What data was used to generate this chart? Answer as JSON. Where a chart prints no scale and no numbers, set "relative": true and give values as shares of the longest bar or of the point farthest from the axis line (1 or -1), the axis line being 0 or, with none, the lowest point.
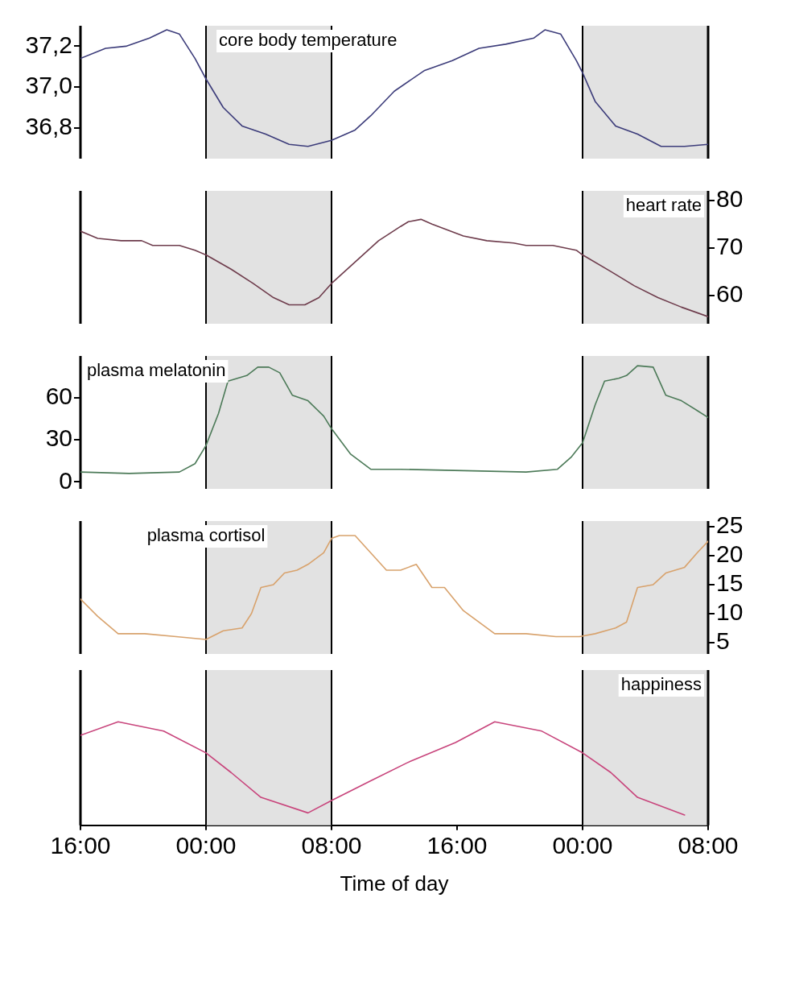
{
  "chart_data": [
    {
      "type": "line",
      "marker": "none",
      "tick_labels": "y",
      "xlim": [
        "--01-01T16:00",
        "--01-03T08:00"
      ],
      "ylim": [
        36.65,
        37.3
      ],
      "yticks": [
        {
          "value": 36.8,
          "label": "36,8"
        },
        {
          "value": 37.0,
          "label": "37,0"
        },
        {
          "value": 37.2,
          "label": "37,2"
        }
      ],
      "bands": [
        {
          "axis": "x",
          "from": "--01-02T00:00",
          "to": "--01-02T08:00",
          "color": "#e2e2e2"
        },
        {
          "axis": "x",
          "from": "--01-03T00:00",
          "to": "--01-03T08:00",
          "color": "#e2e2e2"
        }
      ],
      "ref_lines": [
        {
          "axis": "x",
          "value": "--01-02T00:00",
          "color": "#000000"
        },
        {
          "axis": "x",
          "value": "--01-02T08:00",
          "color": "#000000"
        },
        {
          "axis": "x",
          "value": "--01-03T00:00",
          "color": "#000000"
        }
      ],
      "series": [
        {
          "name": "core body temperature",
          "color": "#3c3c7a",
          "x": [
            "--01-01T16:00",
            "--01-01T17:36",
            "--01-01T18:54",
            "--01-01T20:24",
            "--01-01T21:30",
            "--01-01T22:18",
            "--01-01T23:18",
            "--01-02T00:00",
            "--01-02T01:06",
            "--01-02T02:18",
            "--01-02T03:48",
            "--01-02T05:18",
            "--01-02T06:30",
            "--01-02T08:00",
            "--01-02T09:30",
            "--01-02T10:30",
            "--01-02T12:00",
            "--01-02T13:54",
            "--01-02T15:42",
            "--01-02T17:24",
            "--01-02T19:06",
            "--01-02T20:54",
            "--01-02T21:36",
            "--01-02T22:36",
            "--01-02T23:36",
            "--01-03T00:00",
            "--01-03T00:48",
            "--01-03T02:06",
            "--01-03T03:30",
            "--01-03T05:00",
            "--01-03T06:30",
            "--01-03T08:00"
          ],
          "values": [
            37.14,
            37.19,
            37.2,
            37.24,
            37.28,
            37.26,
            37.14,
            37.04,
            36.9,
            36.81,
            36.77,
            36.72,
            36.71,
            36.74,
            36.79,
            36.86,
            36.98,
            37.08,
            37.13,
            37.19,
            37.21,
            37.24,
            37.28,
            37.26,
            37.13,
            37.07,
            36.93,
            36.81,
            36.77,
            36.71,
            36.71,
            36.72
          ]
        }
      ]
    },
    {
      "type": "line",
      "marker": "none",
      "tick_labels": "y",
      "xlim": [
        "--01-01T16:00",
        "--01-03T08:00"
      ],
      "ylim": [
        54,
        82
      ],
      "yticks": [
        60,
        70,
        80
      ],
      "bands": [
        {
          "axis": "x",
          "from": "--01-02T00:00",
          "to": "--01-02T08:00",
          "color": "#e2e2e2"
        },
        {
          "axis": "x",
          "from": "--01-03T00:00",
          "to": "--01-03T08:00",
          "color": "#e2e2e2"
        }
      ],
      "ref_lines": [
        {
          "axis": "x",
          "value": "--01-02T00:00",
          "color": "#000000"
        },
        {
          "axis": "x",
          "value": "--01-02T08:00",
          "color": "#000000"
        },
        {
          "axis": "x",
          "value": "--01-03T00:00",
          "color": "#000000"
        }
      ],
      "series": [
        {
          "name": "heart rate",
          "color": "#6e3c4c",
          "x": [
            "--01-01T16:00",
            "--01-01T17:06",
            "--01-01T18:36",
            "--01-01T19:54",
            "--01-01T20:36",
            "--01-01T22:18",
            "--01-01T23:18",
            "--01-02T00:00",
            "--01-02T01:36",
            "--01-02T03:00",
            "--01-02T04:18",
            "--01-02T05:18",
            "--01-02T06:18",
            "--01-02T07:12",
            "--01-02T08:00",
            "--01-02T09:30",
            "--01-02T11:00",
            "--01-02T12:24",
            "--01-02T12:54",
            "--01-02T13:42",
            "--01-02T14:24",
            "--01-02T16:24",
            "--01-02T17:54",
            "--01-02T19:36",
            "--01-02T20:24",
            "--01-02T22:06",
            "--01-02T23:36",
            "--01-03T00:00",
            "--01-03T01:48",
            "--01-03T03:18",
            "--01-03T04:48",
            "--01-03T06:18",
            "--01-03T08:00"
          ],
          "values": [
            73.5,
            72,
            71.5,
            71.5,
            70.5,
            70.5,
            69.5,
            68.5,
            65.5,
            62.5,
            59.5,
            58,
            58,
            59.5,
            62.5,
            67,
            71.5,
            74.5,
            75.5,
            76,
            75,
            72.5,
            71.5,
            71,
            70.5,
            70.5,
            69.5,
            68.5,
            65,
            62,
            59.5,
            57.5,
            55.5
          ]
        }
      ]
    },
    {
      "type": "line",
      "marker": "none",
      "tick_labels": "y",
      "xlim": [
        "--01-01T16:00",
        "--01-03T08:00"
      ],
      "ylim": [
        -5,
        90
      ],
      "yticks": [
        0,
        30,
        60
      ],
      "bands": [
        {
          "axis": "x",
          "from": "--01-02T00:00",
          "to": "--01-02T08:00",
          "color": "#e2e2e2"
        },
        {
          "axis": "x",
          "from": "--01-03T00:00",
          "to": "--01-03T08:00",
          "color": "#e2e2e2"
        }
      ],
      "ref_lines": [
        {
          "axis": "x",
          "value": "--01-02T00:00",
          "color": "#000000"
        },
        {
          "axis": "x",
          "value": "--01-02T08:00",
          "color": "#000000"
        },
        {
          "axis": "x",
          "value": "--01-03T00:00",
          "color": "#000000"
        }
      ],
      "series": [
        {
          "name": "plasma melatonin",
          "color": "#4c7a58",
          "x": [
            "--01-01T16:00",
            "--01-01T19:06",
            "--01-01T22:18",
            "--01-01T23:18",
            "--01-02T00:00",
            "--01-02T00:48",
            "--01-02T01:24",
            "--01-02T02:00",
            "--01-02T02:36",
            "--01-02T03:18",
            "--01-02T04:00",
            "--01-02T04:42",
            "--01-02T05:30",
            "--01-02T06:30",
            "--01-02T07:30",
            "--01-02T08:00",
            "--01-02T09:12",
            "--01-02T10:30",
            "--01-02T12:24",
            "--01-02T16:24",
            "--01-02T20:24",
            "--01-02T22:24",
            "--01-02T23:18",
            "--01-03T00:00",
            "--01-03T00:48",
            "--01-03T01:24",
            "--01-03T02:18",
            "--01-03T02:48",
            "--01-03T03:30",
            "--01-03T04:30",
            "--01-03T05:18",
            "--01-03T06:18",
            "--01-03T07:18",
            "--01-03T08:00"
          ],
          "values": [
            7,
            6,
            7,
            13,
            26,
            49,
            72,
            74,
            76,
            82,
            82,
            78,
            62,
            58,
            47,
            38,
            20,
            9,
            9,
            8,
            7,
            9,
            18,
            28,
            55,
            72,
            74,
            76,
            83,
            82,
            62,
            58,
            51,
            46
          ]
        }
      ]
    },
    {
      "type": "line",
      "marker": "none",
      "tick_labels": "y",
      "xlim": [
        "--01-01T16:00",
        "--01-03T08:00"
      ],
      "ylim": [
        3,
        26
      ],
      "yticks": [
        5,
        10,
        15,
        20,
        25
      ],
      "bands": [
        {
          "axis": "x",
          "from": "--01-02T00:00",
          "to": "--01-02T08:00",
          "color": "#e2e2e2"
        },
        {
          "axis": "x",
          "from": "--01-03T00:00",
          "to": "--01-03T08:00",
          "color": "#e2e2e2"
        }
      ],
      "ref_lines": [
        {
          "axis": "x",
          "value": "--01-02T00:00",
          "color": "#000000"
        },
        {
          "axis": "x",
          "value": "--01-02T08:00",
          "color": "#000000"
        },
        {
          "axis": "x",
          "value": "--01-03T00:00",
          "color": "#000000"
        }
      ],
      "series": [
        {
          "name": "plasma cortisol",
          "color": "#d8a26c",
          "x": [
            "--01-01T16:00",
            "--01-01T17:06",
            "--01-01T18:24",
            "--01-01T20:06",
            "--01-01T22:06",
            "--01-02T00:00",
            "--01-02T01:06",
            "--01-02T02:18",
            "--01-02T02:54",
            "--01-02T03:30",
            "--01-02T04:18",
            "--01-02T05:00",
            "--01-02T05:48",
            "--01-02T06:30",
            "--01-02T07:30",
            "--01-02T08:00",
            "--01-02T08:30",
            "--01-02T09:30",
            "--01-02T10:30",
            "--01-02T11:30",
            "--01-02T12:24",
            "--01-02T13:24",
            "--01-02T14:24",
            "--01-02T15:12",
            "--01-02T16:24",
            "--01-02T18:24",
            "--01-02T20:24",
            "--01-02T22:18",
            "--01-02T23:48",
            "--01-03T00:48",
            "--01-03T02:06",
            "--01-03T02:48",
            "--01-03T03:30",
            "--01-03T04:30",
            "--01-03T05:18",
            "--01-03T06:30",
            "--01-03T07:18",
            "--01-03T08:00"
          ],
          "values": [
            12.5,
            9.5,
            6.5,
            6.5,
            6,
            5.5,
            7,
            7.5,
            10,
            14.5,
            15,
            17,
            17.5,
            18.5,
            20.5,
            23,
            23.5,
            23.5,
            20.5,
            17.5,
            17.5,
            18.5,
            14.5,
            14.5,
            10.5,
            6.5,
            6.5,
            6,
            6,
            6.5,
            7.5,
            8.5,
            14.5,
            15,
            17,
            18,
            20.5,
            22.5
          ]
        }
      ]
    },
    {
      "type": "line",
      "marker": "none",
      "tick_labels": "x",
      "relative": true,
      "xlabel": "Time of day",
      "xlim": [
        "--01-01T16:00",
        "--01-03T08:00"
      ],
      "xticks": [
        {
          "value": "--01-01T16:00",
          "label": "16:00"
        },
        {
          "value": "--01-02T00:00",
          "label": "00:00"
        },
        {
          "value": "--01-02T08:00",
          "label": "08:00"
        },
        {
          "value": "--01-02T16:00",
          "label": "16:00"
        },
        {
          "value": "--01-03T00:00",
          "label": "00:00"
        },
        {
          "value": "--01-03T08:00",
          "label": "08:00"
        }
      ],
      "bands": [
        {
          "axis": "x",
          "from": "--01-02T00:00",
          "to": "--01-02T08:00",
          "color": "#e2e2e2"
        },
        {
          "axis": "x",
          "from": "--01-03T00:00",
          "to": "--01-03T08:00",
          "color": "#e2e2e2"
        }
      ],
      "ref_lines": [
        {
          "axis": "x",
          "value": "--01-02T00:00",
          "color": "#000000"
        },
        {
          "axis": "x",
          "value": "--01-02T08:00",
          "color": "#000000"
        },
        {
          "axis": "x",
          "value": "--01-03T00:00",
          "color": "#000000"
        }
      ],
      "series": [
        {
          "name": "happiness",
          "color": "#c8457c",
          "x": [
            "--01-01T16:00",
            "--01-01T18:24",
            "--01-01T21:18",
            "--01-02T00:00",
            "--01-02T01:36",
            "--01-02T03:30",
            "--01-02T06:30",
            "--01-02T08:00",
            "--01-02T10:30",
            "--01-02T12:54",
            "--01-02T15:54",
            "--01-02T18:24",
            "--01-02T21:24",
            "--01-03T00:00",
            "--01-03T01:48",
            "--01-03T03:30",
            "--01-03T06:30"
          ],
          "values": [
            0.87,
            1,
            0.91,
            0.7,
            0.51,
            0.27,
            0.12,
            0.24,
            0.43,
            0.61,
            0.8,
            1,
            0.91,
            0.7,
            0.51,
            0.27,
            0.1
          ]
        }
      ]
    }
  ]
}
